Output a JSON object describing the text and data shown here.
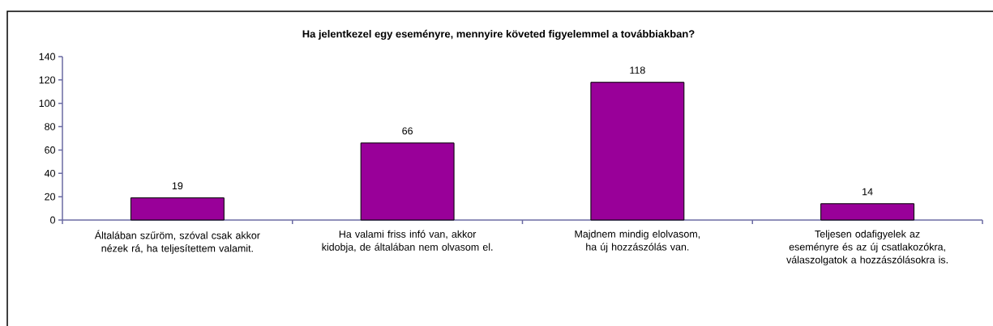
{
  "chart_data": {
    "type": "bar",
    "title": "Ha jelentkezel egy eseményre, mennyire követed figyelemmel a továbbiakban?",
    "categories": [
      "Általában szűröm, szóval csak akkor nézek rá, ha teljesítettem valamit.",
      "Ha valami friss infó van, akkor kidobja, de általában nem olvasom el.",
      "Majdnem mindig elolvasom, ha új hozzászólás van.",
      "Teljesen odafigyelek az eseményre és az új csatlakozókra, válaszolgatok a hozzászólásokra is."
    ],
    "values": [
      19,
      66,
      118,
      14
    ],
    "color": "#990099",
    "ylim": [
      0,
      140
    ],
    "yticks": [
      0,
      20,
      40,
      60,
      80,
      100,
      120,
      140
    ],
    "data_labels": true
  }
}
